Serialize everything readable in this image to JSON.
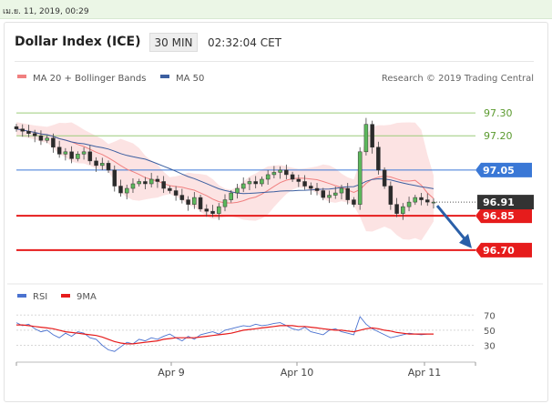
{
  "header": {
    "date_stamp": "เม.ย. 11, 2019, 00:29",
    "title": "Dollar Index (ICE)",
    "timeframe": "30 MIN",
    "time": "02:32:04 CET"
  },
  "chart_data": [
    {
      "type": "candlestick",
      "title": "Dollar Index (ICE)",
      "legend": [
        {
          "name": "MA 20 + Bollinger Bands",
          "color": "#f08080"
        },
        {
          "name": "MA 50",
          "color": "#3c5fa0"
        }
      ],
      "credit": "Research © 2019 Trading Central",
      "x_ticks": [
        "Apr 9",
        "Apr 10",
        "Apr 11"
      ],
      "ylim": [
        96.6,
        97.38
      ],
      "last_price": "96.91",
      "reference_levels": [
        {
          "value": 97.3,
          "label": "97.30",
          "color": "#9ccc7a",
          "kind": "resistance"
        },
        {
          "value": 97.2,
          "label": "97.20",
          "color": "#9ccc7a",
          "kind": "resistance"
        },
        {
          "value": 97.05,
          "label": "97.05",
          "color": "#3a78d6",
          "kind": "pivot"
        },
        {
          "value": 96.85,
          "label": "96.85",
          "color": "#e61c1c",
          "kind": "support"
        },
        {
          "value": 96.7,
          "label": "96.70",
          "color": "#e61c1c",
          "kind": "support"
        }
      ],
      "close_series": [
        97.23,
        97.22,
        97.21,
        97.2,
        97.18,
        97.19,
        97.15,
        97.12,
        97.13,
        97.1,
        97.12,
        97.13,
        97.09,
        97.07,
        97.08,
        97.05,
        96.98,
        96.95,
        96.97,
        96.99,
        97.0,
        96.99,
        97.01,
        97.0,
        96.97,
        96.96,
        96.94,
        96.92,
        96.9,
        96.93,
        96.88,
        96.87,
        96.86,
        96.89,
        96.92,
        96.95,
        96.97,
        96.99,
        97.0,
        96.99,
        97.01,
        97.03,
        97.04,
        97.05,
        97.03,
        97.01,
        97.0,
        96.98,
        96.97,
        96.96,
        96.93,
        96.94,
        96.95,
        96.97,
        96.92,
        96.9,
        97.13,
        97.25,
        97.15,
        97.05,
        96.98,
        96.9,
        96.86,
        96.89,
        96.91,
        96.93,
        96.92,
        96.91,
        96.91
      ],
      "projection": {
        "from": 96.91,
        "to": 96.7
      }
    },
    {
      "type": "line",
      "legend": [
        {
          "name": "RSI",
          "color": "#4a72d0"
        },
        {
          "name": "9MA",
          "color": "#e61c1c"
        }
      ],
      "y_ticks": [
        "70",
        "50",
        "30"
      ],
      "ylim": [
        15,
        80
      ],
      "series": [
        {
          "name": "RSI",
          "values": [
            60,
            56,
            58,
            52,
            48,
            50,
            44,
            40,
            46,
            42,
            48,
            46,
            40,
            38,
            30,
            24,
            22,
            28,
            34,
            32,
            38,
            36,
            40,
            38,
            42,
            45,
            40,
            36,
            42,
            38,
            44,
            46,
            48,
            45,
            50,
            52,
            54,
            56,
            55,
            58,
            56,
            57,
            59,
            60,
            56,
            52,
            50,
            54,
            48,
            46,
            44,
            50,
            52,
            48,
            46,
            44,
            68,
            58,
            52,
            48,
            44,
            40,
            42,
            44,
            46,
            45,
            44,
            45,
            45
          ]
        },
        {
          "name": "9MA",
          "values": [
            57,
            57,
            56,
            55,
            54,
            53,
            52,
            50,
            48,
            47,
            46,
            45,
            44,
            43,
            41,
            38,
            35,
            33,
            32,
            32,
            33,
            34,
            35,
            36,
            38,
            39,
            40,
            40,
            40,
            40,
            41,
            42,
            43,
            44,
            45,
            46,
            48,
            50,
            51,
            52,
            53,
            54,
            55,
            56,
            56,
            56,
            55,
            55,
            54,
            53,
            52,
            51,
            50,
            50,
            49,
            48,
            50,
            52,
            53,
            52,
            50,
            49,
            47,
            46,
            45,
            45,
            45,
            45,
            45
          ]
        }
      ]
    }
  ]
}
